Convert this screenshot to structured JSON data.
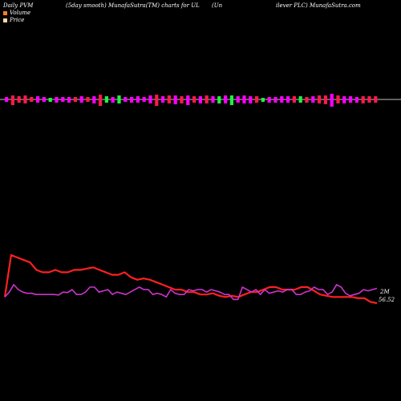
{
  "header": {
    "left": "Daily PVM",
    "center_left": "(5day smooth) MunafaSutra(TM) charts for UL",
    "center_right": "(Un",
    "right": "ilever PLC) MunafaSutra.com"
  },
  "legend": {
    "volume_label": "Volume",
    "price_label": "Price",
    "volume_color": "#ff7f27",
    "price_color": "#ffd8a8"
  },
  "colors": {
    "background": "#000000",
    "up_bar": "#ff00ff",
    "down_bar": "#ff1a4a",
    "green_bar": "#22ee44",
    "price_line": "#ff2020",
    "volume_line": "#cc33cc",
    "axis": "#ffffff"
  },
  "chart_data": [
    {
      "type": "bar",
      "title": "",
      "note": "Volume histogram around zero line",
      "values": [
        -6,
        -12,
        -8,
        -10,
        -6,
        -8,
        -6,
        -5,
        -7,
        -6,
        -7,
        -6,
        -8,
        -6,
        -9,
        -14,
        -8,
        -7,
        -10,
        -6,
        -7,
        -8,
        -6,
        -10,
        -14,
        -8,
        -10,
        -11,
        -9,
        -12,
        -8,
        -9,
        -10,
        -8,
        -9,
        -10,
        -12,
        -8,
        -10,
        -9,
        -8,
        -5,
        -7,
        -7,
        -8,
        -8,
        -8,
        -8,
        -7,
        -8,
        -10,
        -11,
        -16,
        -10,
        -9,
        -8,
        -7,
        -9,
        -8,
        -8
      ],
      "colors": [
        "m",
        "r",
        "r",
        "r",
        "r",
        "m",
        "m",
        "g",
        "m",
        "m",
        "m",
        "r",
        "m",
        "r",
        "m",
        "r",
        "g",
        "m",
        "g",
        "m",
        "m",
        "m",
        "m",
        "m",
        "r",
        "m",
        "r",
        "m",
        "r",
        "m",
        "r",
        "m",
        "r",
        "m",
        "g",
        "m",
        "g",
        "m",
        "m",
        "m",
        "r",
        "g",
        "m",
        "m",
        "m",
        "m",
        "r",
        "g",
        "r",
        "m",
        "r",
        "r",
        "m",
        "r",
        "m",
        "m",
        "m",
        "r",
        "r",
        "r"
      ]
    },
    {
      "type": "line",
      "title": "",
      "price_label": "56.52",
      "volume_label": "2M",
      "series": [
        {
          "values": [
            56.9,
            58.6,
            58.5,
            58.4,
            58.3,
            58.0,
            57.9,
            57.9,
            58.0,
            57.9,
            57.9,
            58.0,
            58.0,
            58.05,
            58.1,
            58.0,
            57.9,
            57.8,
            57.8,
            57.9,
            57.7,
            57.6,
            57.65,
            57.6,
            57.5,
            57.4,
            57.3,
            57.2,
            57.2,
            57.1,
            57.1,
            57.0,
            57.0,
            57.05,
            56.95,
            56.9,
            56.95,
            56.9,
            57.0,
            57.1,
            57.1,
            57.2,
            57.3,
            57.3,
            57.2,
            57.2,
            57.2,
            57.3,
            57.3,
            57.15,
            57.0,
            56.95,
            56.9,
            56.9,
            56.9,
            56.9,
            56.85,
            56.85,
            56.7,
            56.65
          ]
        },
        {
          "values": [
            56.9,
            57.1,
            57.4,
            57.2,
            57.1,
            57.05,
            57.05,
            57.0,
            57.0,
            57.0,
            57.0,
            57.0,
            56.98,
            57.1,
            57.08,
            57.2,
            57.0,
            57.0,
            57.1,
            57.3,
            57.3,
            57.1,
            57.15,
            57.2,
            57.0,
            57.1,
            57.05,
            57.0,
            57.1,
            57.2,
            57.3,
            57.2,
            57.2,
            57.0,
            57.05,
            57.0,
            56.9,
            57.2,
            57.05,
            57.0,
            57.0,
            57.2,
            57.15,
            57.2,
            57.2,
            57.1,
            57.2,
            57.15,
            57.1,
            57.0,
            57.0,
            56.8,
            56.8,
            57.3,
            57.2,
            57.1,
            57.2,
            57.0,
            57.2,
            57.05,
            57.1,
            57.15,
            57.1,
            57.2,
            57.2,
            57.0,
            57.0,
            57.1,
            57.15,
            57.3,
            57.2,
            57.2,
            57.0,
            57.1,
            57.4,
            57.3,
            57.05,
            56.95,
            57.0,
            57.05,
            57.2,
            57.15,
            57.2,
            57.25
          ]
        }
      ]
    }
  ]
}
